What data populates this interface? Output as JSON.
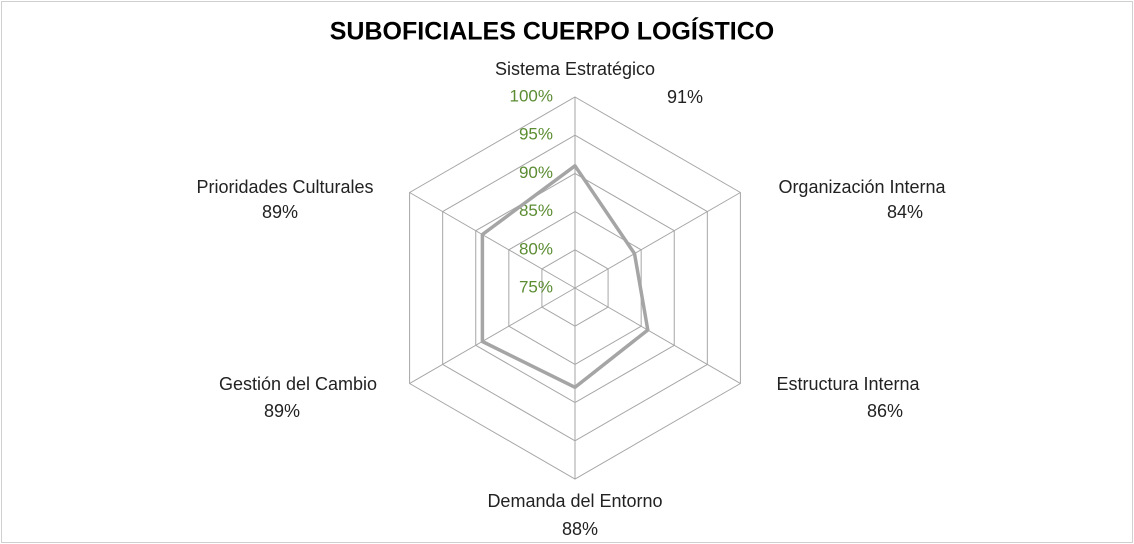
{
  "chart_data": {
    "type": "radar",
    "title": "SUBOFICIALES  CUERPO LOGÍSTICO",
    "categories": [
      "Sistema Estratégico",
      "Organización Interna",
      "Estructura Interna",
      "Demanda del Entorno",
      "Gestión del Cambio",
      "Prioridades Culturales"
    ],
    "values": [
      91,
      84,
      86,
      88,
      89,
      89
    ],
    "value_labels": [
      "91%",
      "84%",
      "86%",
      "88%",
      "89%",
      "89%"
    ],
    "color": "#a5a5a5",
    "ylim": [
      75,
      100
    ],
    "yticks": [
      {
        "value": 75,
        "label": "75%"
      },
      {
        "value": 80,
        "label": "80%"
      },
      {
        "value": 85,
        "label": "85%"
      },
      {
        "value": 90,
        "label": "90%"
      },
      {
        "value": 95,
        "label": "95%"
      },
      {
        "value": 100,
        "label": "100%"
      }
    ],
    "grid": true
  }
}
